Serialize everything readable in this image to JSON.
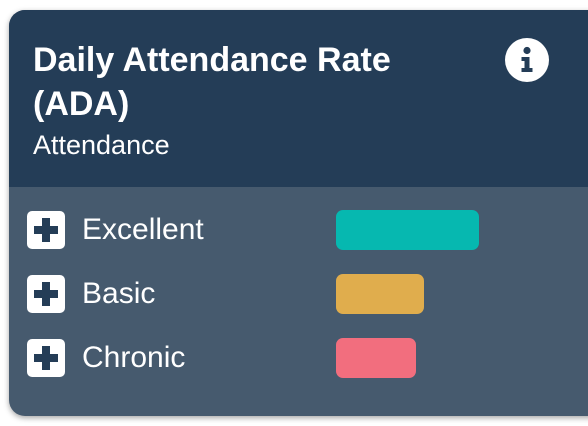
{
  "card": {
    "title": "Daily Attendance Rate (ADA)",
    "subtitle": "Attendance",
    "info_icon": "info-circle-icon"
  },
  "legend": {
    "items": [
      {
        "label": "Excellent",
        "color": "#06b8b0",
        "icon": "plus-icon"
      },
      {
        "label": "Basic",
        "color": "#e0ad4d",
        "icon": "plus-icon"
      },
      {
        "label": "Chronic",
        "color": "#f26e7e",
        "icon": "plus-icon"
      }
    ]
  },
  "colors": {
    "header_bg": "#243d57",
    "body_bg": "#465a6e",
    "text": "#ffffff"
  }
}
